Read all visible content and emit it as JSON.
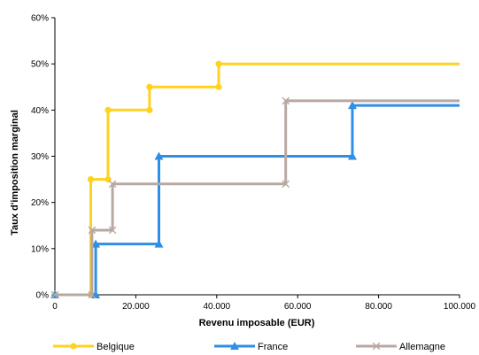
{
  "chart_data": {
    "type": "line",
    "step": true,
    "title": "",
    "xlabel": "Revenu imposable (EUR)",
    "ylabel": "Taux d'imposition marginal",
    "xlim": [
      0,
      100000
    ],
    "ylim": [
      0,
      0.6
    ],
    "x_ticks": [
      0,
      20000,
      40000,
      60000,
      80000,
      100000
    ],
    "x_tick_labels": [
      "0",
      "20.000",
      "40.000",
      "60.000",
      "80.000",
      "100.000"
    ],
    "y_ticks": [
      0,
      0.1,
      0.2,
      0.3,
      0.4,
      0.5,
      0.6
    ],
    "y_tick_labels": [
      "0%",
      "10%",
      "20%",
      "30%",
      "40%",
      "50%",
      "60%"
    ],
    "grid": false,
    "legend_position": "bottom",
    "series": [
      {
        "name": "Belgique",
        "color": "#FFD21F",
        "marker": "circle",
        "points": [
          [
            0,
            0
          ],
          [
            8860,
            0
          ],
          [
            8860,
            0.25
          ],
          [
            13140,
            0.25
          ],
          [
            13140,
            0.4
          ],
          [
            23390,
            0.4
          ],
          [
            23390,
            0.45
          ],
          [
            40480,
            0.45
          ],
          [
            40480,
            0.5
          ],
          [
            100000,
            0.5
          ]
        ]
      },
      {
        "name": "France",
        "color": "#2F8FE6",
        "marker": "triangle",
        "points": [
          [
            0,
            0
          ],
          [
            10080,
            0
          ],
          [
            10080,
            0.11
          ],
          [
            25710,
            0.11
          ],
          [
            25710,
            0.3
          ],
          [
            73520,
            0.3
          ],
          [
            73520,
            0.41
          ],
          [
            100000,
            0.41
          ]
        ]
      },
      {
        "name": "Allemagne",
        "color": "#B8A8A2",
        "marker": "x",
        "points": [
          [
            0,
            0
          ],
          [
            9170,
            0
          ],
          [
            9170,
            0.14
          ],
          [
            14250,
            0.14
          ],
          [
            14250,
            0.24
          ],
          [
            57050,
            0.24
          ],
          [
            57050,
            0.42
          ],
          [
            100000,
            0.42
          ]
        ]
      }
    ]
  }
}
